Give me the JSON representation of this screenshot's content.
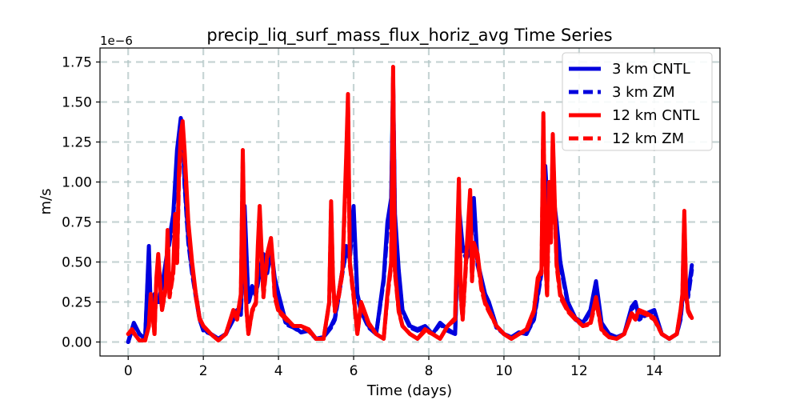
{
  "chart_data": {
    "type": "line",
    "title": "precip_liq_surf_mass_flux_horiz_avg Time Series",
    "xlabel": "Time (days)",
    "ylabel": "m/s",
    "offset_label": "1e−6",
    "xlim": [
      -0.75,
      15.75
    ],
    "ylim": [
      -0.0875,
      1.8375
    ],
    "xticks": [
      0,
      2,
      4,
      6,
      8,
      10,
      12,
      14
    ],
    "xtick_labels": [
      "0",
      "2",
      "4",
      "6",
      "8",
      "10",
      "12",
      "14"
    ],
    "yticks": [
      0.0,
      0.25,
      0.5,
      0.75,
      1.0,
      1.25,
      1.5,
      1.75
    ],
    "ytick_labels": [
      "0.00",
      "0.25",
      "0.50",
      "0.75",
      "1.00",
      "1.25",
      "1.50",
      "1.75"
    ],
    "grid": true,
    "legend_position": "top-right",
    "series": [
      {
        "name": "3 km CNTL",
        "color": "#0000dd",
        "dash": "solid",
        "x": [
          0,
          0.15,
          0.3,
          0.45,
          0.5,
          0.55,
          0.6,
          0.65,
          0.7,
          0.8,
          0.9,
          1.0,
          1.1,
          1.2,
          1.3,
          1.4,
          1.45,
          1.5,
          1.6,
          1.7,
          1.8,
          1.9,
          2.0,
          2.2,
          2.4,
          2.6,
          2.8,
          2.9,
          3.0,
          3.1,
          3.2,
          3.3,
          3.4,
          3.5,
          3.6,
          3.7,
          3.8,
          3.9,
          4.0,
          4.2,
          4.4,
          4.6,
          4.8,
          5.0,
          5.2,
          5.4,
          5.5,
          5.6,
          5.7,
          5.8,
          5.9,
          6.0,
          6.1,
          6.2,
          6.4,
          6.6,
          6.8,
          6.9,
          7.0,
          7.05,
          7.1,
          7.2,
          7.3,
          7.5,
          7.7,
          7.9,
          8.1,
          8.3,
          8.5,
          8.7,
          8.8,
          8.9,
          9.0,
          9.1,
          9.2,
          9.3,
          9.4,
          9.5,
          9.6,
          9.8,
          10.0,
          10.2,
          10.4,
          10.6,
          10.8,
          11.0,
          11.1,
          11.2,
          11.3,
          11.4,
          11.5,
          11.7,
          11.9,
          12.1,
          12.3,
          12.45,
          12.6,
          12.8,
          13.0,
          13.2,
          13.4,
          13.5,
          13.6,
          13.8,
          14.0,
          14.2,
          14.4,
          14.6,
          14.7,
          14.8,
          14.9,
          15.0
        ],
        "y": [
          0.0,
          0.12,
          0.05,
          0.02,
          0.3,
          0.6,
          0.2,
          0.15,
          0.3,
          0.25,
          0.35,
          0.5,
          0.65,
          0.8,
          1.2,
          1.4,
          1.35,
          1.0,
          0.65,
          0.45,
          0.3,
          0.15,
          0.08,
          0.05,
          0.02,
          0.05,
          0.15,
          0.2,
          0.18,
          0.85,
          0.25,
          0.35,
          0.3,
          0.45,
          0.55,
          0.45,
          0.6,
          0.4,
          0.3,
          0.12,
          0.1,
          0.06,
          0.08,
          0.02,
          0.03,
          0.1,
          0.15,
          0.3,
          0.45,
          0.6,
          0.55,
          0.85,
          0.3,
          0.2,
          0.1,
          0.05,
          0.4,
          0.75,
          0.9,
          1.65,
          0.8,
          0.45,
          0.2,
          0.1,
          0.08,
          0.1,
          0.05,
          0.12,
          0.08,
          0.05,
          0.85,
          0.6,
          0.55,
          0.6,
          0.9,
          0.5,
          0.4,
          0.3,
          0.25,
          0.1,
          0.05,
          0.03,
          0.06,
          0.05,
          0.15,
          0.45,
          1.1,
          0.7,
          0.95,
          0.75,
          0.5,
          0.25,
          0.15,
          0.12,
          0.2,
          0.38,
          0.12,
          0.05,
          0.03,
          0.05,
          0.22,
          0.25,
          0.15,
          0.18,
          0.2,
          0.05,
          0.02,
          0.05,
          0.15,
          0.4,
          0.3,
          0.48
        ]
      },
      {
        "name": "3 km ZM",
        "color": "#0000dd",
        "dash": "dashed",
        "x": [
          0,
          0.15,
          0.3,
          0.45,
          0.5,
          0.55,
          0.6,
          0.65,
          0.7,
          0.8,
          0.9,
          1.0,
          1.1,
          1.2,
          1.3,
          1.4,
          1.45,
          1.5,
          1.6,
          1.7,
          1.8,
          1.9,
          2.0,
          2.2,
          2.4,
          2.6,
          2.8,
          2.9,
          3.0,
          3.1,
          3.2,
          3.3,
          3.4,
          3.5,
          3.6,
          3.7,
          3.8,
          3.9,
          4.0,
          4.2,
          4.4,
          4.6,
          4.8,
          5.0,
          5.2,
          5.4,
          5.5,
          5.6,
          5.7,
          5.8,
          5.9,
          6.0,
          6.1,
          6.2,
          6.4,
          6.6,
          6.8,
          6.9,
          7.0,
          7.05,
          7.1,
          7.2,
          7.3,
          7.5,
          7.7,
          7.9,
          8.1,
          8.3,
          8.5,
          8.7,
          8.8,
          8.9,
          9.0,
          9.1,
          9.2,
          9.3,
          9.4,
          9.5,
          9.6,
          9.8,
          10.0,
          10.2,
          10.4,
          10.6,
          10.8,
          11.0,
          11.1,
          11.2,
          11.3,
          11.4,
          11.5,
          11.7,
          11.9,
          12.1,
          12.3,
          12.45,
          12.6,
          12.8,
          13.0,
          13.2,
          13.4,
          13.5,
          13.6,
          13.8,
          14.0,
          14.2,
          14.4,
          14.6,
          14.7,
          14.8,
          14.9,
          15.0
        ],
        "y": [
          0.0,
          0.11,
          0.05,
          0.02,
          0.28,
          0.55,
          0.2,
          0.15,
          0.28,
          0.24,
          0.33,
          0.48,
          0.62,
          0.78,
          1.15,
          1.35,
          1.3,
          0.98,
          0.62,
          0.43,
          0.28,
          0.14,
          0.07,
          0.05,
          0.02,
          0.05,
          0.14,
          0.19,
          0.17,
          0.8,
          0.24,
          0.33,
          0.29,
          0.43,
          0.52,
          0.43,
          0.57,
          0.38,
          0.28,
          0.11,
          0.09,
          0.06,
          0.07,
          0.02,
          0.03,
          0.09,
          0.14,
          0.28,
          0.43,
          0.57,
          0.52,
          0.8,
          0.28,
          0.19,
          0.09,
          0.05,
          0.38,
          0.7,
          0.85,
          1.6,
          0.75,
          0.43,
          0.19,
          0.09,
          0.07,
          0.09,
          0.05,
          0.11,
          0.07,
          0.05,
          0.8,
          0.57,
          0.52,
          0.57,
          0.85,
          0.48,
          0.38,
          0.28,
          0.24,
          0.09,
          0.05,
          0.03,
          0.06,
          0.05,
          0.14,
          0.43,
          1.05,
          0.66,
          0.9,
          0.7,
          0.48,
          0.24,
          0.14,
          0.11,
          0.19,
          0.35,
          0.11,
          0.05,
          0.03,
          0.05,
          0.2,
          0.24,
          0.14,
          0.17,
          0.19,
          0.05,
          0.02,
          0.05,
          0.14,
          0.38,
          0.28,
          0.45
        ]
      },
      {
        "name": "12 km CNTL",
        "color": "#ff0000",
        "dash": "solid",
        "x": [
          0,
          0.1,
          0.2,
          0.3,
          0.45,
          0.55,
          0.6,
          0.7,
          0.75,
          0.8,
          0.9,
          1.0,
          1.05,
          1.1,
          1.2,
          1.25,
          1.3,
          1.35,
          1.4,
          1.45,
          1.5,
          1.6,
          1.7,
          1.8,
          1.9,
          2.0,
          2.2,
          2.4,
          2.6,
          2.8,
          2.9,
          3.0,
          3.05,
          3.1,
          3.15,
          3.2,
          3.3,
          3.4,
          3.45,
          3.5,
          3.6,
          3.7,
          3.8,
          3.85,
          3.9,
          4.0,
          4.2,
          4.4,
          4.6,
          4.8,
          5.0,
          5.2,
          5.35,
          5.4,
          5.45,
          5.5,
          5.6,
          5.7,
          5.8,
          5.85,
          5.9,
          6.0,
          6.1,
          6.2,
          6.4,
          6.6,
          6.8,
          6.9,
          7.0,
          7.05,
          7.1,
          7.2,
          7.3,
          7.5,
          7.7,
          7.9,
          8.1,
          8.3,
          8.5,
          8.7,
          8.8,
          8.85,
          8.9,
          9.0,
          9.1,
          9.15,
          9.2,
          9.3,
          9.4,
          9.5,
          9.6,
          9.8,
          10.0,
          10.2,
          10.4,
          10.6,
          10.8,
          10.9,
          11.0,
          11.05,
          11.1,
          11.15,
          11.2,
          11.25,
          11.3,
          11.4,
          11.5,
          11.7,
          11.9,
          12.1,
          12.3,
          12.45,
          12.6,
          12.8,
          13.0,
          13.2,
          13.4,
          13.5,
          13.6,
          13.8,
          14.0,
          14.2,
          14.4,
          14.6,
          14.7,
          14.75,
          14.8,
          14.85,
          14.9,
          15.0
        ],
        "y": [
          0.05,
          0.08,
          0.04,
          0.01,
          0.01,
          0.1,
          0.3,
          0.05,
          0.4,
          0.55,
          0.2,
          0.35,
          0.7,
          0.3,
          0.45,
          0.8,
          0.5,
          1.05,
          1.3,
          1.38,
          1.2,
          0.75,
          0.5,
          0.3,
          0.15,
          0.1,
          0.05,
          0.01,
          0.05,
          0.2,
          0.15,
          0.3,
          1.2,
          0.5,
          0.2,
          0.05,
          0.2,
          0.25,
          0.6,
          0.85,
          0.3,
          0.55,
          0.65,
          0.5,
          0.3,
          0.2,
          0.15,
          0.1,
          0.1,
          0.08,
          0.02,
          0.02,
          0.25,
          0.88,
          0.4,
          0.2,
          0.3,
          0.45,
          1.15,
          1.55,
          0.5,
          0.3,
          0.05,
          0.25,
          0.12,
          0.05,
          0.02,
          0.3,
          0.5,
          1.72,
          0.45,
          0.2,
          0.1,
          0.05,
          0.02,
          0.08,
          0.05,
          0.02,
          0.1,
          0.15,
          1.02,
          0.3,
          0.15,
          0.55,
          0.95,
          0.4,
          0.62,
          0.55,
          0.35,
          0.25,
          0.2,
          0.1,
          0.05,
          0.02,
          0.05,
          0.08,
          0.2,
          0.4,
          0.45,
          1.43,
          0.55,
          0.3,
          1.0,
          0.65,
          1.3,
          0.5,
          0.3,
          0.2,
          0.15,
          0.1,
          0.12,
          0.28,
          0.08,
          0.03,
          0.02,
          0.05,
          0.18,
          0.15,
          0.2,
          0.18,
          0.15,
          0.05,
          0.02,
          0.05,
          0.2,
          0.3,
          0.82,
          0.3,
          0.2,
          0.15
        ]
      },
      {
        "name": "12 km ZM",
        "color": "#ff0000",
        "dash": "dashed",
        "x": [
          0,
          0.1,
          0.2,
          0.3,
          0.45,
          0.55,
          0.6,
          0.7,
          0.75,
          0.8,
          0.9,
          1.0,
          1.05,
          1.1,
          1.2,
          1.25,
          1.3,
          1.35,
          1.4,
          1.45,
          1.5,
          1.6,
          1.7,
          1.8,
          1.9,
          2.0,
          2.2,
          2.4,
          2.6,
          2.8,
          2.9,
          3.0,
          3.05,
          3.1,
          3.15,
          3.2,
          3.3,
          3.4,
          3.45,
          3.5,
          3.6,
          3.7,
          3.8,
          3.85,
          3.9,
          4.0,
          4.2,
          4.4,
          4.6,
          4.8,
          5.0,
          5.2,
          5.35,
          5.4,
          5.45,
          5.5,
          5.6,
          5.7,
          5.8,
          5.85,
          5.9,
          6.0,
          6.1,
          6.2,
          6.4,
          6.6,
          6.8,
          6.9,
          7.0,
          7.05,
          7.1,
          7.2,
          7.3,
          7.5,
          7.7,
          7.9,
          8.1,
          8.3,
          8.5,
          8.7,
          8.8,
          8.85,
          8.9,
          9.0,
          9.1,
          9.15,
          9.2,
          9.3,
          9.4,
          9.5,
          9.6,
          9.8,
          10.0,
          10.2,
          10.4,
          10.6,
          10.8,
          10.9,
          11.0,
          11.05,
          11.1,
          11.15,
          11.2,
          11.25,
          11.3,
          11.4,
          11.5,
          11.7,
          11.9,
          12.1,
          12.3,
          12.45,
          12.6,
          12.8,
          13.0,
          13.2,
          13.4,
          13.5,
          13.6,
          13.8,
          14.0,
          14.2,
          14.4,
          14.6,
          14.7,
          14.75,
          14.8,
          14.85,
          14.9,
          15.0
        ],
        "y": [
          0.05,
          0.07,
          0.04,
          0.01,
          0.01,
          0.1,
          0.28,
          0.05,
          0.38,
          0.52,
          0.2,
          0.33,
          0.66,
          0.28,
          0.43,
          0.76,
          0.48,
          1.0,
          1.24,
          1.33,
          1.15,
          0.72,
          0.48,
          0.28,
          0.14,
          0.1,
          0.05,
          0.01,
          0.05,
          0.19,
          0.14,
          0.28,
          1.15,
          0.48,
          0.19,
          0.05,
          0.19,
          0.24,
          0.57,
          0.8,
          0.28,
          0.52,
          0.62,
          0.48,
          0.28,
          0.19,
          0.14,
          0.1,
          0.1,
          0.07,
          0.02,
          0.02,
          0.24,
          0.84,
          0.38,
          0.19,
          0.28,
          0.43,
          1.1,
          1.5,
          0.48,
          0.28,
          0.05,
          0.24,
          0.11,
          0.05,
          0.02,
          0.28,
          0.48,
          1.66,
          0.43,
          0.19,
          0.1,
          0.05,
          0.02,
          0.07,
          0.05,
          0.02,
          0.1,
          0.14,
          0.97,
          0.28,
          0.14,
          0.52,
          0.9,
          0.38,
          0.59,
          0.52,
          0.33,
          0.24,
          0.19,
          0.1,
          0.05,
          0.02,
          0.05,
          0.07,
          0.19,
          0.38,
          0.43,
          1.38,
          0.52,
          0.28,
          0.95,
          0.62,
          1.25,
          0.48,
          0.28,
          0.19,
          0.14,
          0.1,
          0.11,
          0.26,
          0.07,
          0.03,
          0.02,
          0.05,
          0.17,
          0.14,
          0.19,
          0.17,
          0.14,
          0.05,
          0.02,
          0.05,
          0.19,
          0.28,
          0.78,
          0.28,
          0.19,
          0.14
        ]
      }
    ]
  }
}
